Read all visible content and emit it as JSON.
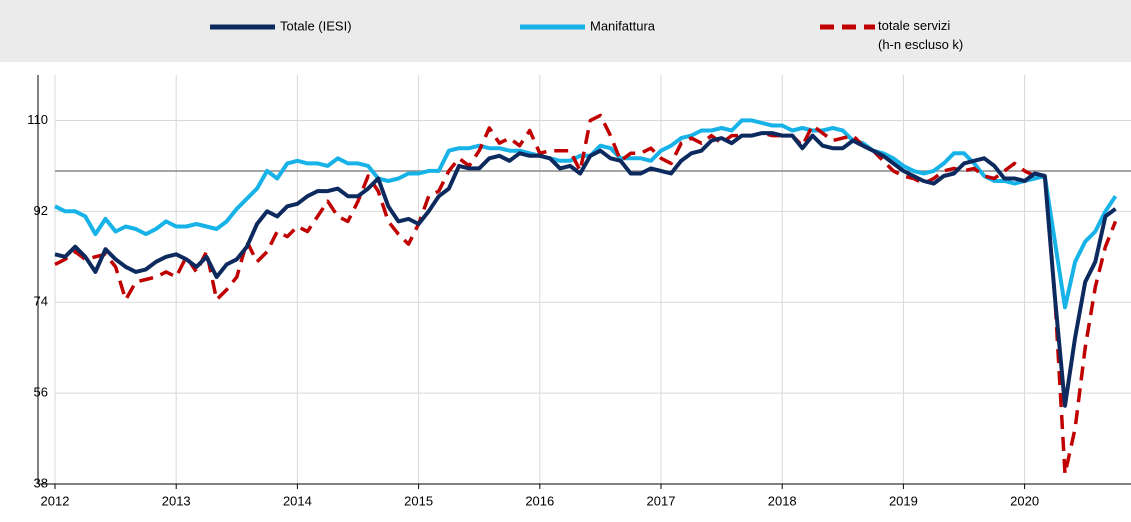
{
  "chart_data": {
    "type": "line",
    "categories": [
      "2012",
      null,
      null,
      null,
      null,
      null,
      null,
      null,
      null,
      null,
      null,
      null,
      "2013",
      null,
      null,
      null,
      null,
      null,
      null,
      null,
      null,
      null,
      null,
      null,
      "2014",
      null,
      null,
      null,
      null,
      null,
      null,
      null,
      null,
      null,
      null,
      null,
      "2015",
      null,
      null,
      null,
      null,
      null,
      null,
      null,
      null,
      null,
      null,
      null,
      "2016",
      null,
      null,
      null,
      null,
      null,
      null,
      null,
      null,
      null,
      null,
      null,
      "2017",
      null,
      null,
      null,
      null,
      null,
      null,
      null,
      null,
      null,
      null,
      null,
      "2018",
      null,
      null,
      null,
      null,
      null,
      null,
      null,
      null,
      null,
      null,
      null,
      "2019",
      null,
      null,
      null,
      null,
      null,
      null,
      null,
      null,
      null,
      null,
      null,
      "2020",
      null,
      null,
      null,
      null,
      null,
      null,
      null,
      null,
      null
    ],
    "series": [
      {
        "name": "Totale (IESI)",
        "color": "#0d2a5f",
        "dash": false,
        "values": [
          83.5,
          83,
          85,
          83,
          80,
          84.5,
          82.5,
          81,
          80,
          80.5,
          82,
          83,
          83.5,
          82.5,
          81,
          83,
          79,
          81.5,
          82.5,
          85,
          89.5,
          92,
          91,
          93,
          93.5,
          95,
          96,
          96,
          96.5,
          95,
          95,
          96.5,
          98.5,
          93,
          90,
          90.5,
          89.5,
          92,
          95,
          96.5,
          101,
          100.5,
          100.5,
          102.5,
          103,
          102,
          103.5,
          103,
          103,
          102.5,
          100.5,
          101,
          99.5,
          103,
          104,
          102.5,
          102,
          99.5,
          99.5,
          100.5,
          100,
          99.5,
          102,
          103.5,
          104,
          106,
          106.5,
          105.5,
          107,
          107,
          107.5,
          107.5,
          107,
          107,
          104.5,
          107,
          105,
          104.5,
          104.5,
          106,
          105,
          104,
          103,
          101.5,
          100,
          99,
          98,
          97.5,
          99,
          99.5,
          101.5,
          102,
          102.5,
          101,
          98.5,
          98.5,
          98,
          99.5,
          99,
          75,
          53.5,
          67,
          78,
          82,
          91,
          92.5
        ]
      },
      {
        "name": "Manifattura",
        "color": "#17b2e8",
        "dash": false,
        "values": [
          93,
          92,
          92,
          91,
          87.5,
          90.5,
          88,
          89,
          88.5,
          87.5,
          88.5,
          90,
          89,
          89,
          89.5,
          89,
          88.5,
          90,
          92.5,
          94.5,
          96.5,
          100,
          98.5,
          101.5,
          102,
          101.5,
          101.5,
          101,
          102.5,
          101.5,
          101.5,
          101,
          98.5,
          98,
          98.5,
          99.5,
          99.5,
          100,
          100,
          104,
          104.5,
          104.5,
          105,
          104.5,
          104.5,
          104,
          104,
          103.5,
          103,
          102.5,
          102,
          102,
          103,
          103,
          105,
          104.5,
          102.5,
          102.5,
          102.5,
          102,
          104,
          105,
          106.5,
          107,
          108,
          108,
          108.5,
          108,
          110,
          110,
          109.5,
          109,
          109,
          108,
          108.5,
          108,
          108,
          108.5,
          108,
          106,
          105.5,
          104,
          103.5,
          102.5,
          101,
          100,
          99.5,
          100,
          101.5,
          103.5,
          103.5,
          101.5,
          99,
          98,
          98,
          97.5,
          98,
          98.5,
          99,
          86,
          73,
          82,
          86,
          88,
          92,
          95
        ]
      },
      {
        "name": "totale servizi\n(h-n escluso k)",
        "color": "#c00000",
        "dash": true,
        "values": [
          81.5,
          82.5,
          84,
          82.5,
          83,
          83.5,
          81,
          74.5,
          78,
          78.5,
          79,
          80,
          79,
          83,
          80,
          84,
          74.5,
          76.5,
          79,
          86,
          82,
          84,
          88,
          87,
          89,
          88,
          91,
          94,
          91,
          90,
          94,
          99,
          96,
          90,
          87.5,
          85.5,
          89.5,
          95,
          96,
          100,
          102.5,
          101,
          104,
          108.5,
          105.5,
          106.5,
          105,
          108,
          103.5,
          104,
          104,
          104,
          100,
          110,
          111,
          107,
          102,
          103.5,
          103.5,
          104.5,
          102.5,
          101.5,
          105.5,
          106.5,
          105.5,
          107,
          105.5,
          107,
          107,
          107,
          107.5,
          107,
          107,
          107,
          105,
          109,
          107.5,
          106,
          106.5,
          107,
          105,
          104,
          102,
          100,
          99,
          98.5,
          97.5,
          98.5,
          100,
          100.5,
          100,
          100.5,
          99,
          98.5,
          100,
          101.5,
          100,
          99,
          99,
          75,
          40,
          49,
          65,
          77,
          85,
          90
        ]
      }
    ],
    "ylim": [
      38,
      119
    ],
    "yticks": [
      38,
      56,
      74,
      92,
      110
    ],
    "reference_line": 100,
    "grid": true,
    "legend": "top"
  }
}
